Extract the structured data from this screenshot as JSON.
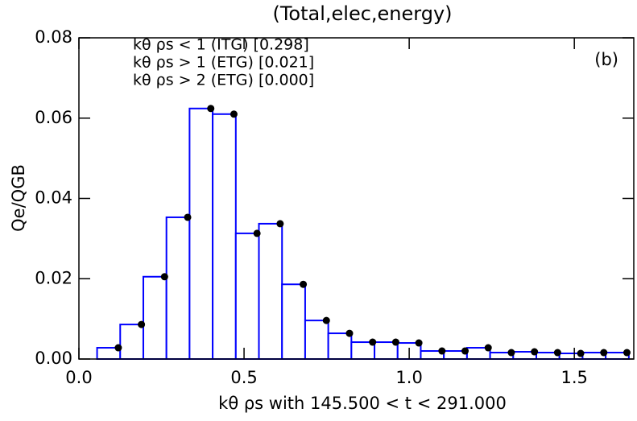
{
  "chart_data": {
    "type": "histogram",
    "title": "(Total,elec,energy)",
    "xlabel": "kθ ρs with  145.500 < t < 291.000",
    "ylabel": "Qe/QGB",
    "panel_label": "(b)",
    "annotations": [
      "kθ ρs < 1 (ITG) [0.298]",
      "kθ ρs > 1 (ETG) [0.021]",
      "kθ ρs > 2 (ETG) [0.000]"
    ],
    "bins": [
      0.055,
      0.125,
      0.195,
      0.265,
      0.335,
      0.405,
      0.475,
      0.545,
      0.615,
      0.685,
      0.755,
      0.825,
      0.895,
      0.965,
      1.035,
      1.105,
      1.175,
      1.245,
      1.315,
      1.385,
      1.455,
      1.525,
      1.595,
      1.665
    ],
    "values": [
      0.0028,
      0.0086,
      0.0205,
      0.0353,
      0.0624,
      0.061,
      0.0313,
      0.0337,
      0.0186,
      0.0096,
      0.0064,
      0.0042,
      0.0042,
      0.004,
      0.002,
      0.002,
      0.0028,
      0.0016,
      0.0018,
      0.0016,
      0.0014,
      0.0016,
      0.0016
    ],
    "color": "#0000ff",
    "marker_color": "#000000",
    "xlim": [
      0,
      1.68
    ],
    "ylim": [
      0,
      0.08
    ],
    "xticks": [
      {
        "value": 0,
        "label": "0.0"
      },
      0.5,
      {
        "value": 1,
        "label": "1.0"
      },
      1.5
    ],
    "yticks": [
      {
        "value": 0,
        "label": "0.00"
      },
      0.02,
      0.04,
      0.06,
      0.08
    ]
  }
}
